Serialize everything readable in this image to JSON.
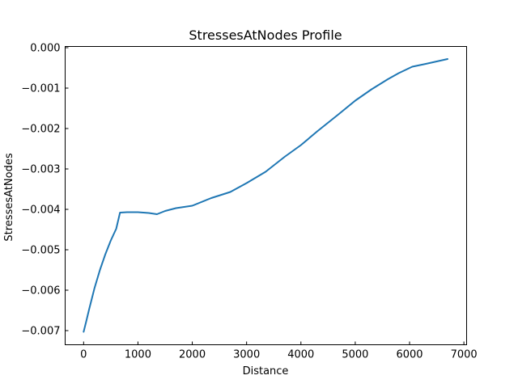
{
  "chart_data": {
    "type": "line",
    "title": "StressesAtNodes Profile",
    "xlabel": "Distance",
    "ylabel": "StressesAtNodes",
    "xlim": [
      -340,
      7050
    ],
    "ylim": [
      -0.00735,
      3e-05
    ],
    "x_ticks": [
      0,
      1000,
      2000,
      3000,
      4000,
      5000,
      6000,
      7000
    ],
    "x_tick_labels": [
      "0",
      "1000",
      "2000",
      "3000",
      "4000",
      "5000",
      "6000",
      "7000"
    ],
    "y_ticks": [
      0.0,
      -0.001,
      -0.002,
      -0.003,
      -0.004,
      -0.005,
      -0.006,
      -0.007
    ],
    "y_tick_labels": [
      "0.000",
      "−0.001",
      "−0.002",
      "−0.003",
      "−0.004",
      "−0.005",
      "−0.006",
      "−0.007"
    ],
    "grid": false,
    "line_color": "#1f77b4",
    "series": [
      {
        "x": [
          0,
          50,
          100,
          200,
          300,
          400,
          500,
          600,
          670,
          800,
          1000,
          1200,
          1350,
          1500,
          1700,
          2000,
          2350,
          2700,
          3000,
          3350,
          3700,
          4000,
          4300,
          4700,
          5000,
          5300,
          5600,
          5800,
          6050,
          6300,
          6700
        ],
        "y": [
          -0.00703,
          -0.00676,
          -0.00648,
          -0.00595,
          -0.0055,
          -0.00511,
          -0.00477,
          -0.00448,
          -0.00408,
          -0.00407,
          -0.00407,
          -0.00409,
          -0.00412,
          -0.00404,
          -0.00397,
          -0.00391,
          -0.00372,
          -0.00357,
          -0.00335,
          -0.00307,
          -0.0027,
          -0.00241,
          -0.00207,
          -0.00164,
          -0.00131,
          -0.00103,
          -0.00078,
          -0.00063,
          -0.00047,
          -0.0004,
          -0.00028
        ]
      }
    ]
  }
}
